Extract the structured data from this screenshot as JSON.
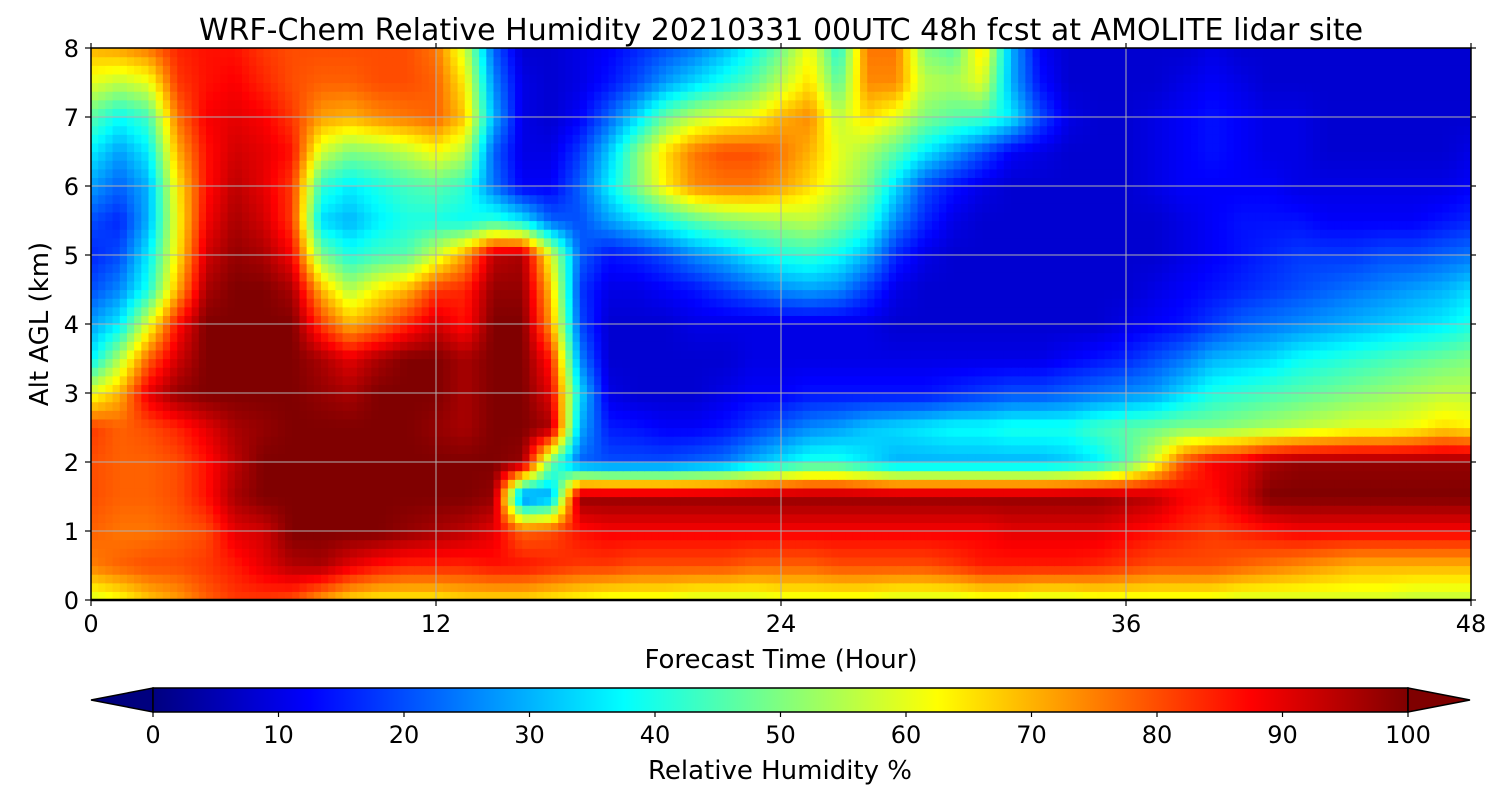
{
  "chart_data": {
    "type": "heatmap",
    "title": "WRF-Chem Relative Humidity 20210331 00UTC 48h fcst at AMOLITE lidar site",
    "xlabel": "Forecast Time (Hour)",
    "ylabel": "Alt AGL (km)",
    "xlim": [
      0,
      48
    ],
    "ylim": [
      0,
      8
    ],
    "xticks": [
      0,
      12,
      24,
      36,
      48
    ],
    "yticks": [
      0,
      1,
      2,
      3,
      4,
      5,
      6,
      7,
      8
    ],
    "grid": true,
    "colormap": "jet",
    "colorbar": {
      "label": "Relative Humidity %",
      "min": 0,
      "max": 100,
      "ticks": [
        0,
        10,
        20,
        30,
        40,
        50,
        60,
        70,
        80,
        90,
        100
      ],
      "extend": "both",
      "orientation": "horizontal"
    },
    "x": [
      0,
      1,
      2,
      3,
      4,
      5,
      6,
      7,
      8,
      9,
      10,
      11,
      12,
      13,
      14,
      15,
      16,
      17,
      18,
      19,
      20,
      21,
      22,
      23,
      24,
      25,
      26,
      27,
      28,
      29,
      30,
      31,
      32,
      33,
      34,
      35,
      36,
      37,
      38,
      39,
      40,
      41,
      42,
      43,
      44,
      45,
      46,
      47,
      48
    ],
    "y": [
      0,
      0.5,
      1,
      1.5,
      2,
      2.5,
      3,
      3.5,
      4,
      4.5,
      5,
      5.5,
      6,
      6.5,
      7,
      7.5,
      8
    ],
    "z": [
      [
        58,
        62,
        68,
        72,
        78,
        82,
        82,
        80,
        72,
        66,
        64,
        64,
        64,
        66,
        66,
        66,
        64,
        62,
        60,
        60,
        60,
        58,
        58,
        58,
        60,
        60,
        60,
        60,
        58,
        58,
        58,
        60,
        60,
        58,
        58,
        60,
        60,
        60,
        60,
        60,
        58,
        58,
        58,
        58,
        58,
        58,
        56,
        56,
        56
      ],
      [
        75,
        78,
        80,
        80,
        82,
        85,
        90,
        95,
        96,
        90,
        86,
        84,
        84,
        84,
        86,
        86,
        84,
        82,
        82,
        80,
        80,
        80,
        80,
        78,
        78,
        78,
        80,
        80,
        80,
        80,
        82,
        85,
        85,
        85,
        85,
        84,
        82,
        80,
        80,
        80,
        78,
        76,
        74,
        72,
        70,
        70,
        70,
        70,
        70
      ],
      [
        78,
        76,
        76,
        78,
        80,
        90,
        92,
        100,
        100,
        100,
        100,
        98,
        96,
        94,
        90,
        78,
        80,
        86,
        88,
        88,
        88,
        88,
        88,
        88,
        88,
        88,
        88,
        88,
        88,
        88,
        88,
        88,
        90,
        90,
        90,
        90,
        88,
        86,
        84,
        82,
        84,
        86,
        88,
        88,
        88,
        88,
        88,
        88,
        88
      ],
      [
        80,
        78,
        78,
        80,
        86,
        96,
        100,
        100,
        100,
        100,
        100,
        100,
        100,
        100,
        98,
        22,
        28,
        98,
        98,
        98,
        98,
        98,
        98,
        98,
        98,
        98,
        98,
        98,
        98,
        98,
        98,
        98,
        98,
        98,
        98,
        98,
        96,
        94,
        88,
        86,
        92,
        100,
        100,
        100,
        100,
        100,
        100,
        100,
        100
      ],
      [
        80,
        78,
        78,
        80,
        86,
        94,
        100,
        100,
        100,
        100,
        100,
        100,
        100,
        100,
        100,
        98,
        48,
        22,
        20,
        20,
        20,
        22,
        24,
        30,
        35,
        40,
        40,
        35,
        30,
        30,
        30,
        30,
        30,
        30,
        32,
        36,
        45,
        60,
        80,
        88,
        90,
        96,
        98,
        98,
        98,
        98,
        98,
        98,
        98
      ],
      [
        82,
        78,
        80,
        84,
        90,
        96,
        98,
        100,
        100,
        100,
        100,
        100,
        98,
        96,
        100,
        100,
        96,
        30,
        15,
        14,
        12,
        12,
        14,
        18,
        22,
        26,
        28,
        32,
        34,
        36,
        38,
        38,
        40,
        40,
        40,
        44,
        46,
        48,
        50,
        50,
        52,
        54,
        56,
        58,
        60,
        60,
        62,
        66,
        64
      ],
      [
        60,
        70,
        90,
        98,
        100,
        100,
        100,
        100,
        98,
        96,
        100,
        100,
        100,
        96,
        100,
        100,
        90,
        35,
        10,
        8,
        8,
        8,
        10,
        12,
        12,
        14,
        14,
        14,
        14,
        14,
        16,
        18,
        20,
        20,
        22,
        24,
        26,
        28,
        34,
        40,
        42,
        44,
        46,
        48,
        50,
        52,
        54,
        56,
        56
      ],
      [
        36,
        55,
        78,
        92,
        100,
        100,
        100,
        100,
        96,
        90,
        96,
        100,
        100,
        96,
        100,
        100,
        85,
        26,
        8,
        8,
        8,
        8,
        8,
        10,
        10,
        10,
        10,
        10,
        10,
        10,
        10,
        10,
        10,
        10,
        12,
        14,
        16,
        20,
        24,
        30,
        32,
        34,
        38,
        40,
        42,
        44,
        46,
        48,
        50
      ],
      [
        28,
        36,
        60,
        86,
        100,
        100,
        100,
        100,
        82,
        70,
        76,
        84,
        92,
        86,
        100,
        100,
        72,
        20,
        8,
        8,
        8,
        10,
        10,
        10,
        10,
        10,
        10,
        10,
        8,
        8,
        8,
        8,
        8,
        8,
        8,
        8,
        10,
        12,
        14,
        18,
        22,
        24,
        26,
        28,
        30,
        32,
        34,
        36,
        40
      ],
      [
        20,
        26,
        40,
        70,
        96,
        100,
        100,
        96,
        70,
        55,
        64,
        70,
        82,
        84,
        98,
        98,
        68,
        18,
        10,
        10,
        12,
        14,
        18,
        22,
        26,
        28,
        26,
        18,
        10,
        8,
        8,
        8,
        8,
        8,
        8,
        8,
        8,
        10,
        12,
        14,
        16,
        18,
        20,
        22,
        24,
        26,
        28,
        30,
        34
      ],
      [
        16,
        20,
        36,
        64,
        92,
        98,
        96,
        88,
        50,
        40,
        44,
        46,
        58,
        72,
        94,
        96,
        60,
        22,
        14,
        16,
        20,
        26,
        30,
        36,
        40,
        42,
        38,
        30,
        16,
        10,
        8,
        8,
        8,
        8,
        8,
        8,
        8,
        8,
        10,
        12,
        14,
        16,
        18,
        18,
        18,
        20,
        20,
        22,
        24
      ],
      [
        20,
        16,
        30,
        62,
        88,
        96,
        92,
        82,
        34,
        30,
        36,
        40,
        40,
        38,
        42,
        36,
        22,
        20,
        28,
        34,
        40,
        46,
        50,
        52,
        54,
        56,
        50,
        42,
        26,
        16,
        10,
        8,
        8,
        8,
        8,
        8,
        8,
        8,
        10,
        12,
        14,
        14,
        14,
        12,
        12,
        12,
        12,
        14,
        16
      ],
      [
        28,
        22,
        30,
        64,
        86,
        94,
        90,
        82,
        42,
        36,
        40,
        44,
        46,
        42,
        24,
        12,
        12,
        22,
        36,
        50,
        64,
        74,
        76,
        76,
        72,
        66,
        58,
        50,
        34,
        20,
        14,
        10,
        8,
        8,
        8,
        8,
        8,
        10,
        12,
        12,
        12,
        12,
        10,
        10,
        10,
        10,
        10,
        10,
        12
      ],
      [
        36,
        28,
        36,
        70,
        86,
        92,
        90,
        86,
        58,
        50,
        52,
        56,
        62,
        56,
        22,
        10,
        10,
        18,
        32,
        50,
        66,
        76,
        80,
        80,
        76,
        70,
        60,
        54,
        46,
        36,
        28,
        20,
        12,
        10,
        8,
        8,
        8,
        10,
        12,
        14,
        12,
        10,
        10,
        8,
        8,
        8,
        8,
        8,
        10
      ],
      [
        46,
        38,
        44,
        76,
        88,
        90,
        88,
        82,
        72,
        70,
        74,
        76,
        78,
        68,
        30,
        10,
        8,
        12,
        22,
        34,
        48,
        56,
        60,
        62,
        70,
        74,
        56,
        66,
        60,
        50,
        46,
        44,
        36,
        20,
        10,
        8,
        8,
        10,
        12,
        14,
        12,
        10,
        10,
        8,
        8,
        8,
        8,
        8,
        8
      ],
      [
        60,
        56,
        60,
        82,
        86,
        88,
        84,
        80,
        78,
        78,
        80,
        80,
        78,
        64,
        26,
        10,
        8,
        10,
        14,
        20,
        28,
        34,
        40,
        46,
        56,
        66,
        46,
        74,
        74,
        56,
        54,
        60,
        30,
        14,
        8,
        8,
        8,
        8,
        10,
        12,
        10,
        8,
        8,
        8,
        8,
        8,
        8,
        8,
        8
      ],
      [
        70,
        72,
        76,
        84,
        86,
        86,
        82,
        80,
        80,
        80,
        80,
        80,
        76,
        58,
        22,
        8,
        8,
        10,
        12,
        16,
        20,
        24,
        30,
        38,
        48,
        62,
        40,
        76,
        76,
        50,
        46,
        66,
        30,
        12,
        8,
        8,
        8,
        8,
        8,
        10,
        8,
        8,
        8,
        8,
        8,
        8,
        8,
        8,
        8
      ]
    ]
  }
}
